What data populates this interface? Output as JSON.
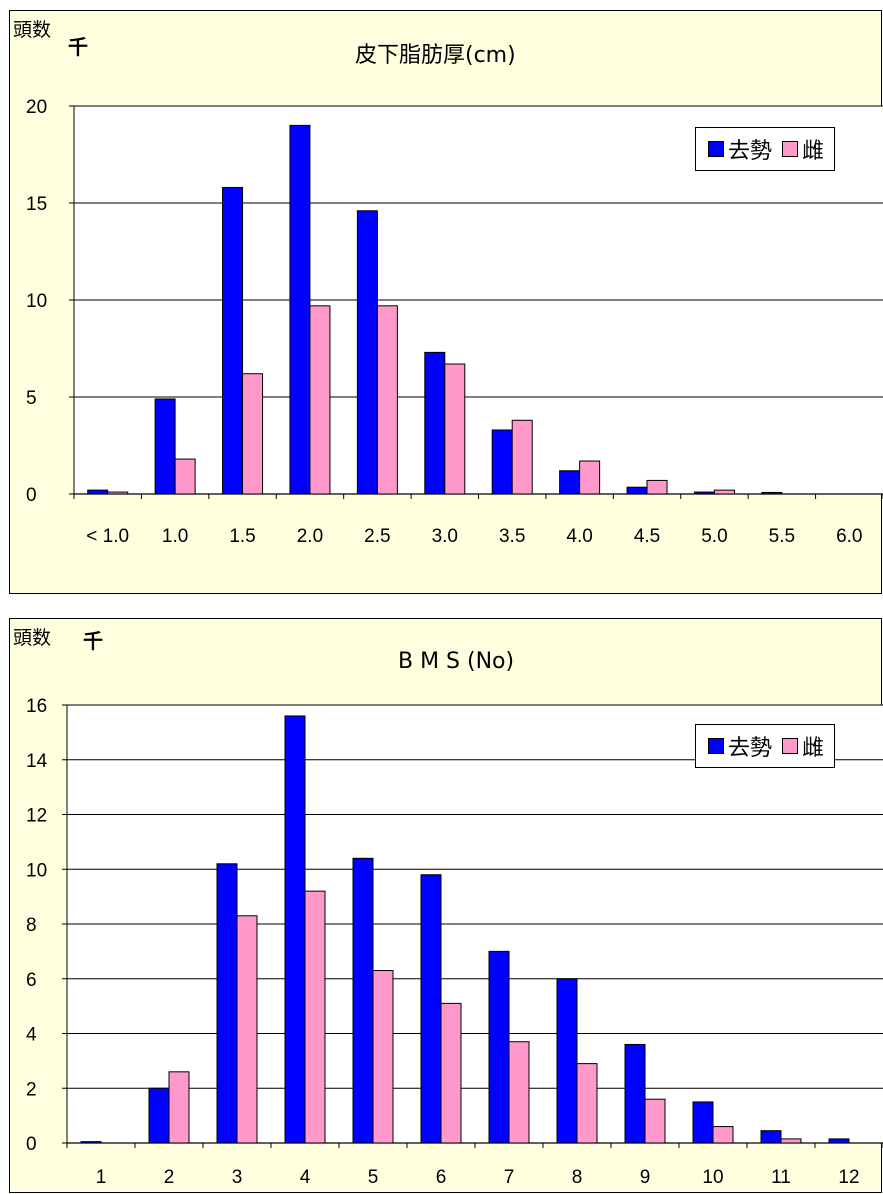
{
  "colors": {
    "castrated": "#0000ff",
    "female": "#ff99cc",
    "panel_bg": "#ffffe0"
  },
  "charts": [
    {
      "unit_label": "頭数",
      "unit_multiplier": "千",
      "title": "皮下脂肪厚(cm)",
      "legend": {
        "castrated": "去勢",
        "female": "雌"
      }
    },
    {
      "unit_label": "頭数",
      "unit_multiplier": "千",
      "title": "B M S (No)",
      "legend": {
        "castrated": "去勢",
        "female": "雌"
      }
    }
  ],
  "chart_data": [
    {
      "type": "bar",
      "title": "皮下脂肪厚(cm)",
      "ylabel": "頭数 千",
      "xlabel": "",
      "categories": [
        "< 1.0",
        "1.0",
        "1.5",
        "2.0",
        "2.5",
        "3.0",
        "3.5",
        "4.0",
        "4.5",
        "5.0",
        "5.5",
        "6.0"
      ],
      "ylim": [
        0,
        20
      ],
      "yticks": [
        0,
        5,
        10,
        15,
        20
      ],
      "grid": true,
      "legend_position": "top-right",
      "series": [
        {
          "name": "去勢",
          "color": "#0000ff",
          "values": [
            0.2,
            4.9,
            15.8,
            19.0,
            14.6,
            7.3,
            3.3,
            1.2,
            0.35,
            0.1,
            0.08,
            0
          ]
        },
        {
          "name": "雌",
          "color": "#ff99cc",
          "values": [
            0.1,
            1.8,
            6.2,
            9.7,
            9.7,
            6.7,
            3.8,
            1.7,
            0.7,
            0.2,
            0,
            0
          ]
        }
      ]
    },
    {
      "type": "bar",
      "title": "B M S (No)",
      "ylabel": "頭数 千",
      "xlabel": "",
      "categories": [
        "1",
        "2",
        "3",
        "4",
        "5",
        "6",
        "7",
        "8",
        "9",
        "10",
        "11",
        "12"
      ],
      "ylim": [
        0,
        16
      ],
      "yticks": [
        0,
        2,
        4,
        6,
        8,
        10,
        12,
        14,
        16
      ],
      "grid": true,
      "legend_position": "top-right",
      "series": [
        {
          "name": "去勢",
          "color": "#0000ff",
          "values": [
            0.05,
            2.0,
            10.2,
            15.6,
            10.4,
            9.8,
            7.0,
            6.0,
            3.6,
            1.5,
            0.45,
            0.15
          ]
        },
        {
          "name": "雌",
          "color": "#ff99cc",
          "values": [
            0,
            2.6,
            8.3,
            9.2,
            6.3,
            5.1,
            3.7,
            2.9,
            1.6,
            0.6,
            0.15,
            0
          ]
        }
      ]
    }
  ]
}
